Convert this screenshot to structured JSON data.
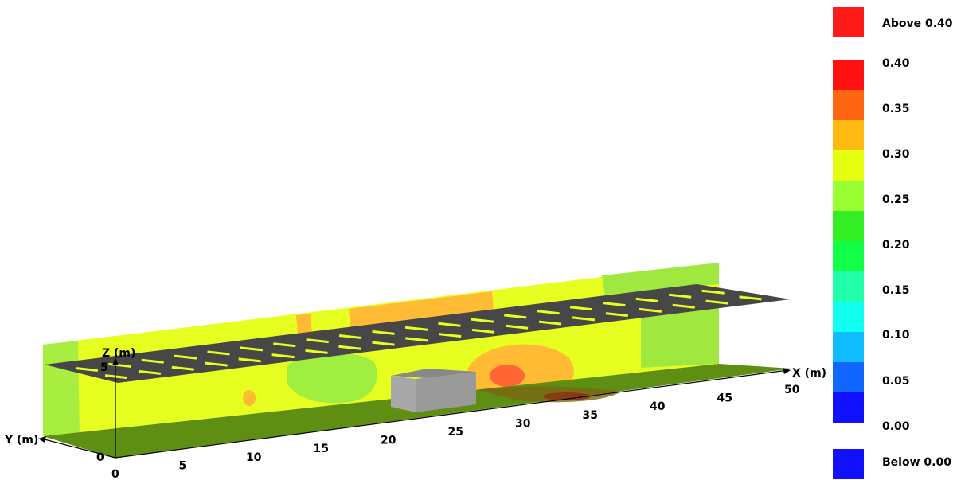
{
  "axes": {
    "x_label": "X (m)",
    "y_label": "Y (m)",
    "z_label": "Z (m)",
    "x_ticks": [
      "0",
      "5",
      "10",
      "15",
      "20",
      "25",
      "30",
      "35",
      "40",
      "45",
      "50"
    ],
    "z_tick": "5",
    "y_origin": "0"
  },
  "legend": {
    "above": {
      "label": "Above 0.40",
      "color": "#ff1a1a"
    },
    "bands": [
      {
        "label": "0.40",
        "color": "#ff1111"
      },
      {
        "label": "0.35",
        "color": "#ff6611"
      },
      {
        "label": "0.30",
        "color": "#ffbb11"
      },
      {
        "label": "0.25",
        "color": "#e6ff11"
      },
      {
        "label": "0.20",
        "color": "#99ff33"
      },
      {
        "label": "0.15",
        "color": "#33ee22"
      },
      {
        "label": "0.10",
        "color": "#11ff44"
      },
      {
        "label": "0.05",
        "color": "#22ffaa"
      },
      {
        "label": "0.00",
        "color": "#11ffee"
      }
    ],
    "lower_bands": [
      "#11bbff",
      "#1166ff",
      "#1111ff"
    ],
    "below": {
      "label": "Below 0.00",
      "color": "#1111ff"
    }
  },
  "colors": {
    "floor": "#5f8f12",
    "floor_dark": "#6e6a16",
    "back_wall": "#d8f030",
    "end_wall": "#a0e840",
    "shelf": "#474747",
    "lights": "#e6ff20",
    "box_front": "#a0a0a0",
    "box_top": "#888888",
    "box_side": "#b5b5b5"
  }
}
